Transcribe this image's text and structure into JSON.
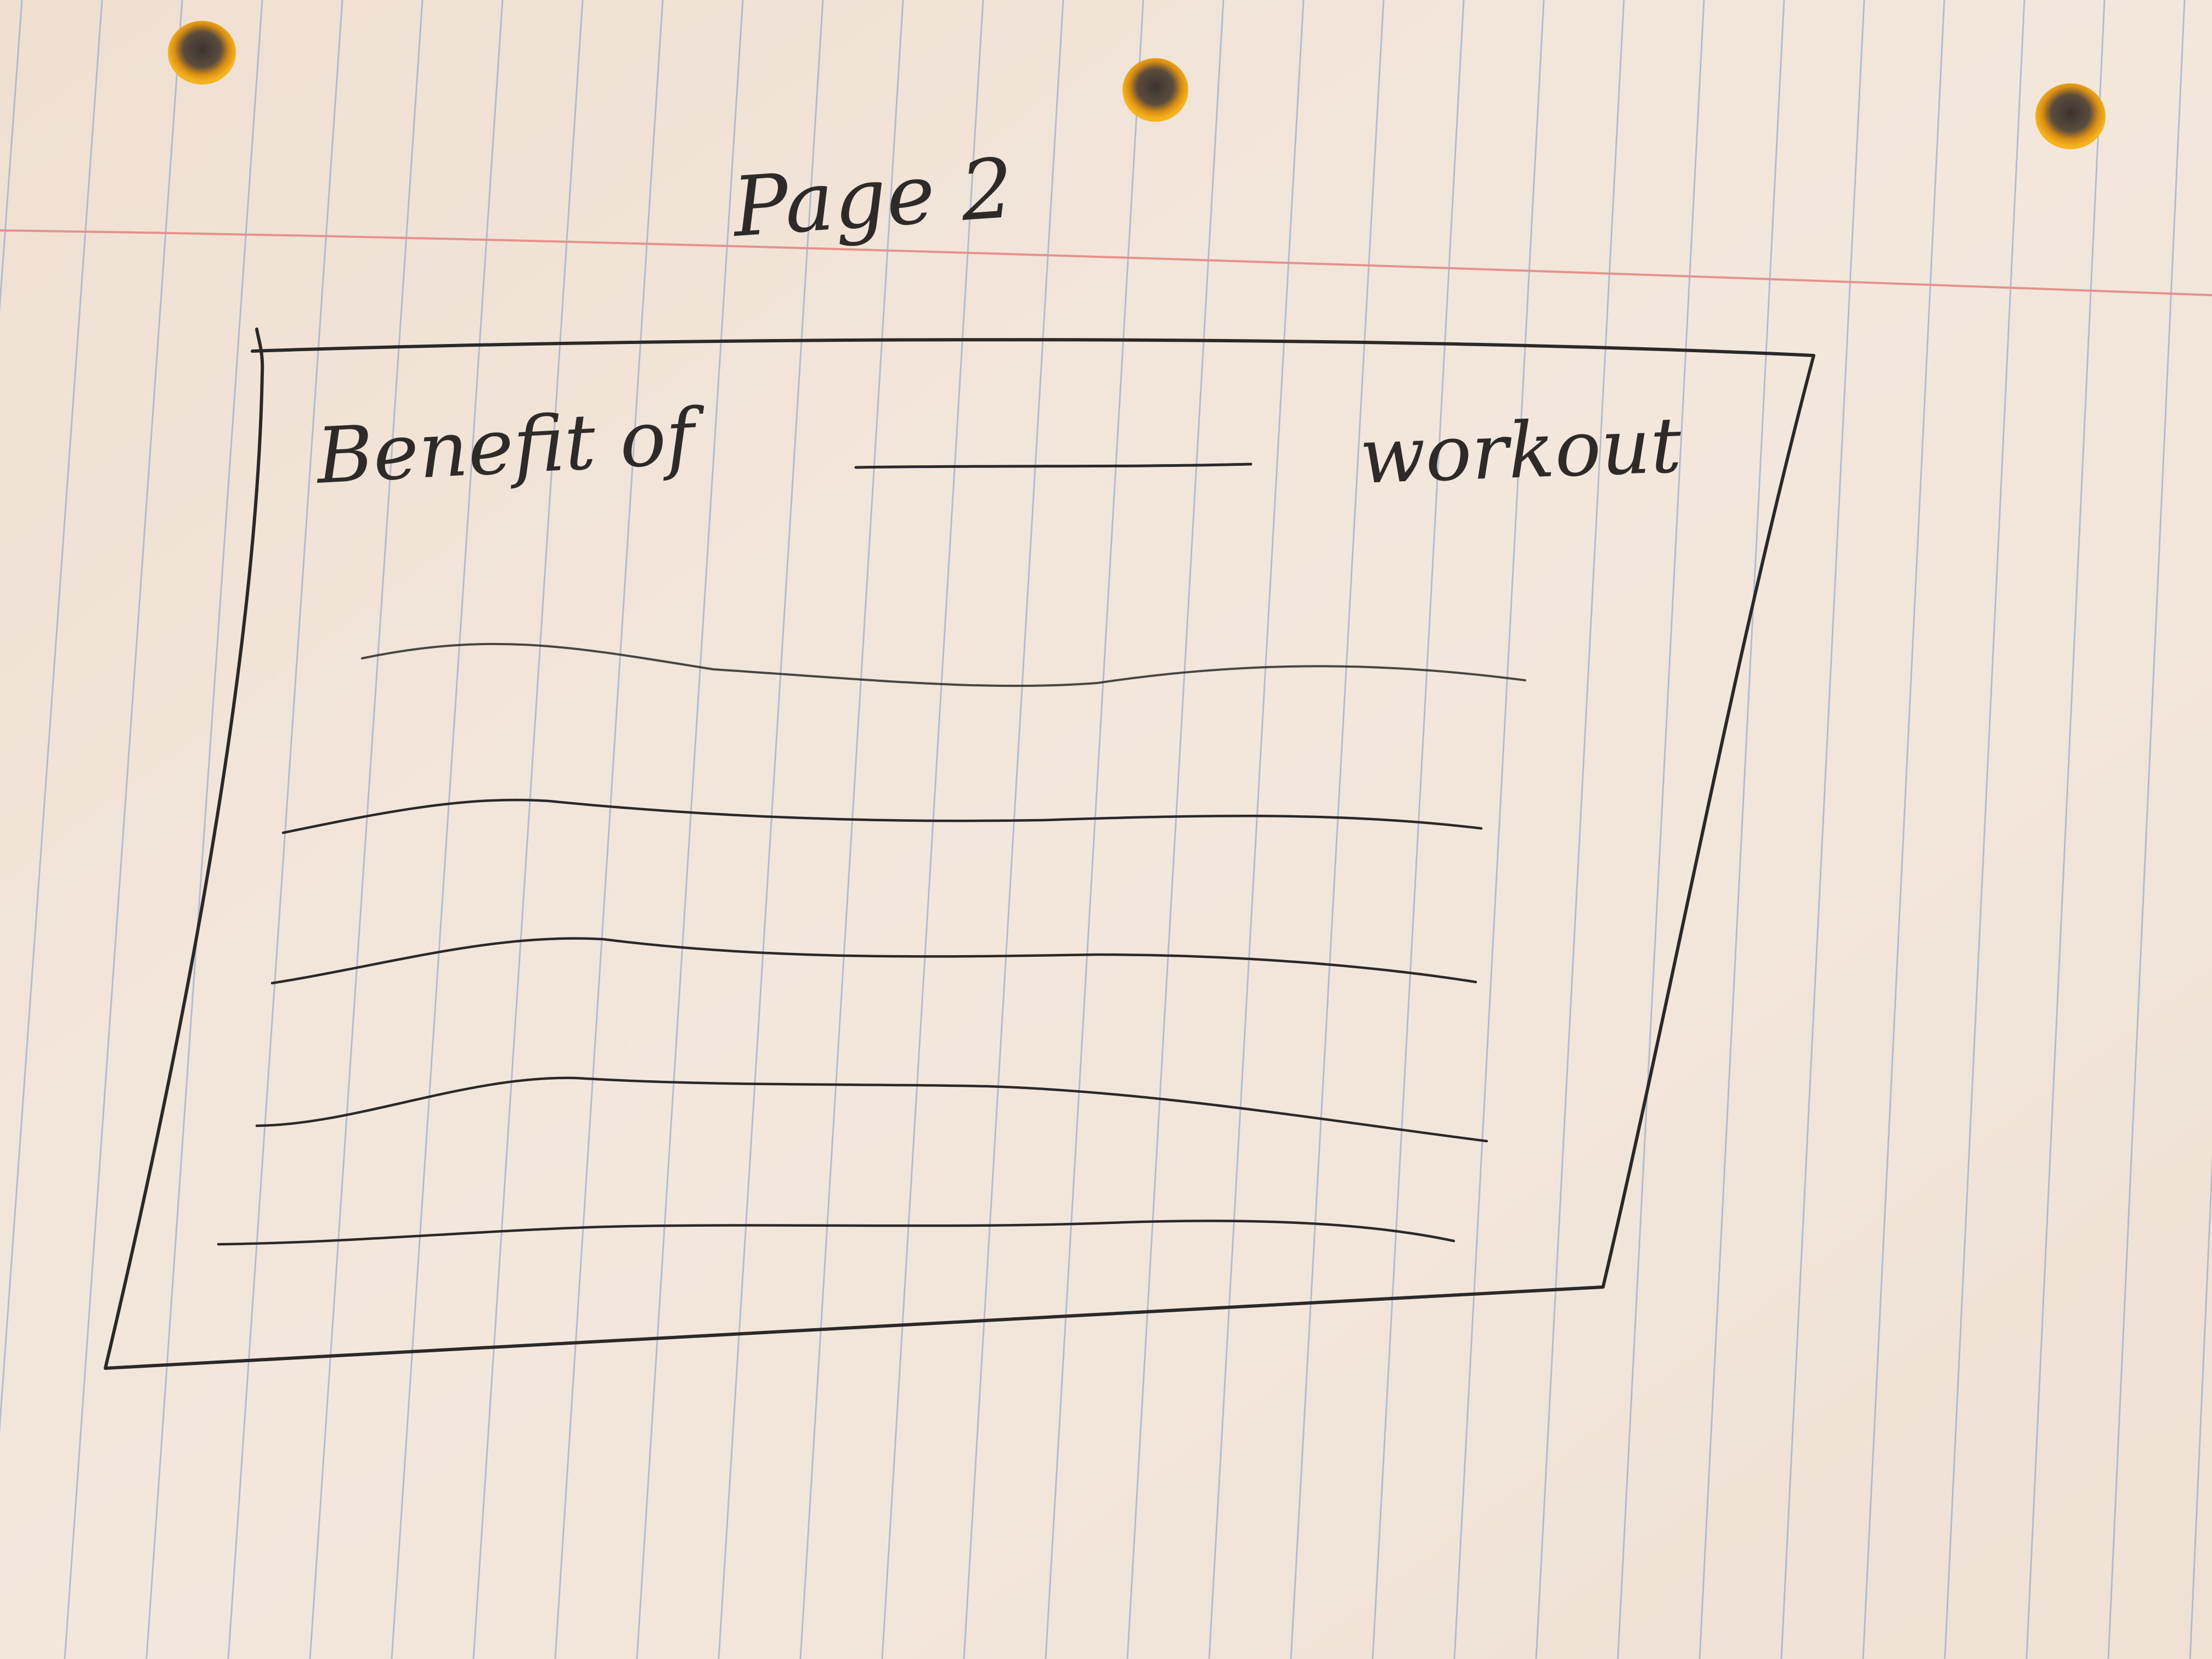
{
  "paper": {
    "background_color": "#f1e5d9",
    "rule_color": "#9fb0c9",
    "margin_line_color": "#e7918f",
    "ink_color": "#2b2927",
    "hole_color": "#f4b11d"
  },
  "sketch": {
    "page_heading": "Page 2",
    "card": {
      "title_lead": "Benefit of",
      "title_tail": "workout",
      "placeholder_lines": 5
    }
  }
}
